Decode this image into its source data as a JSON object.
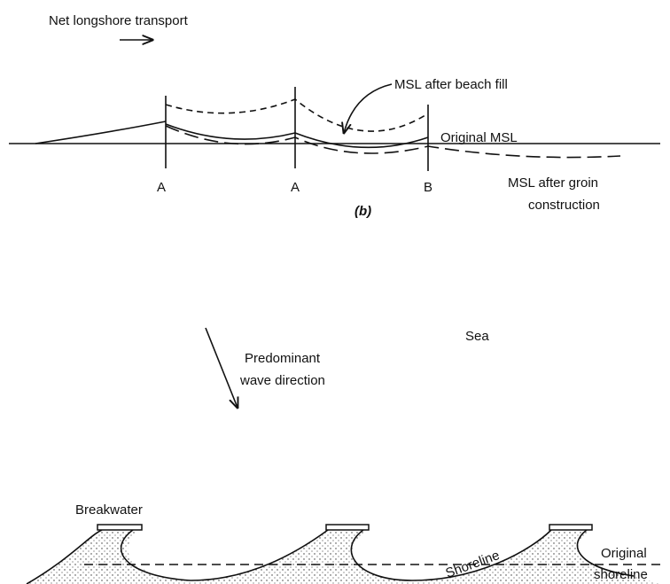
{
  "groin_diagram": {
    "transport_label": "Net longshore transport",
    "beach_fill_label": "MSL after beach fill",
    "original_msl_label": "Original MSL",
    "groin_labels": [
      "A",
      "A",
      "B"
    ],
    "groin_construction_label": [
      "MSL after groin",
      "construction"
    ],
    "caption": "(b)"
  },
  "breakwater_diagram": {
    "sea_label": "Sea",
    "wave_label": [
      "Predominant",
      "wave direction"
    ],
    "breakwater_label": "Breakwater",
    "original_shoreline_label": [
      "Original",
      "shoreline"
    ],
    "shoreline_label": "Shoreline"
  }
}
